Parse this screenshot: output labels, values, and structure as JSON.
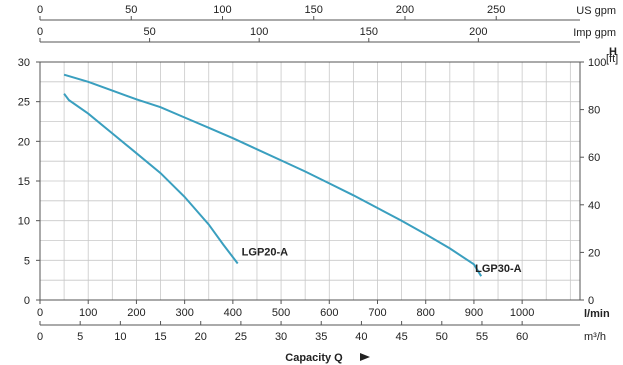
{
  "chart_data": {
    "type": "line",
    "xlabel": "Capacity Q",
    "ylabel_left": "",
    "ylabel_right": "H",
    "grid": true,
    "x_unit": "l/min",
    "x_range": [
      0,
      1120
    ],
    "y_range_m": [
      0,
      30
    ],
    "y_range_ft": [
      0,
      100
    ],
    "x_ticks": [
      0,
      100,
      200,
      300,
      400,
      500,
      600,
      700,
      800,
      900,
      1000
    ],
    "y_left_ticks": [
      0,
      5,
      10,
      15,
      20,
      25,
      30
    ],
    "y_right_ticks": [
      0,
      20,
      40,
      60,
      80,
      100
    ],
    "y_right_unit": "[ft]",
    "top_axes": [
      {
        "unit": "US gpm",
        "ticks": [
          0,
          50,
          100,
          150,
          200,
          250
        ]
      },
      {
        "unit": "Imp gpm",
        "ticks": [
          0,
          50,
          100,
          150,
          200
        ]
      }
    ],
    "bottom_axis2": {
      "unit": "m³/h",
      "ticks": [
        0,
        5,
        10,
        15,
        20,
        25,
        30,
        35,
        40,
        45,
        50,
        55,
        60
      ]
    },
    "series": [
      {
        "name": "LGP20-A",
        "color": "#3a9fbf",
        "points": [
          [
            50,
            26.0
          ],
          [
            60,
            25.2
          ],
          [
            100,
            23.5
          ],
          [
            150,
            21.0
          ],
          [
            200,
            18.5
          ],
          [
            250,
            16.0
          ],
          [
            300,
            13.0
          ],
          [
            350,
            9.5
          ],
          [
            380,
            7.0
          ],
          [
            410,
            4.6
          ]
        ]
      },
      {
        "name": "LGP30-A",
        "color": "#3a9fbf",
        "points": [
          [
            50,
            28.4
          ],
          [
            100,
            27.5
          ],
          [
            150,
            26.4
          ],
          [
            200,
            25.3
          ],
          [
            250,
            24.3
          ],
          [
            300,
            23.0
          ],
          [
            350,
            21.7
          ],
          [
            400,
            20.4
          ],
          [
            450,
            19.0
          ],
          [
            500,
            17.6
          ],
          [
            550,
            16.2
          ],
          [
            600,
            14.7
          ],
          [
            650,
            13.2
          ],
          [
            700,
            11.6
          ],
          [
            750,
            10.0
          ],
          [
            800,
            8.3
          ],
          [
            850,
            6.5
          ],
          [
            900,
            4.5
          ],
          [
            915,
            3.0
          ]
        ]
      }
    ]
  }
}
